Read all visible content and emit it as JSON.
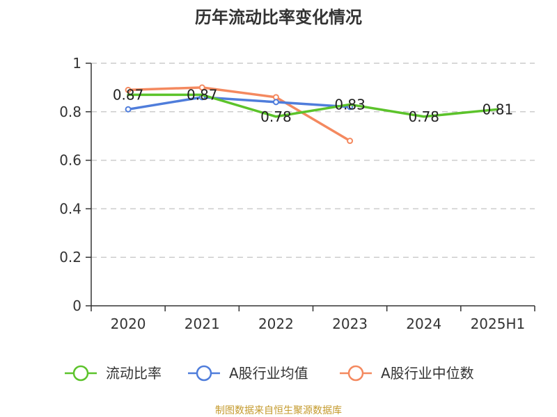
{
  "chart_data": {
    "type": "line",
    "title": "历年流动比率变化情况",
    "categories": [
      "2020",
      "2021",
      "2022",
      "2023",
      "2024",
      "2025H1"
    ],
    "ylim": [
      0,
      1
    ],
    "yticks": [
      "0",
      "0.2",
      "0.4",
      "0.6",
      "0.8",
      "1"
    ],
    "grid": true,
    "legend_position": "bottom",
    "series": [
      {
        "name": "流动比率",
        "color": "#5cc32b",
        "values": [
          0.87,
          0.87,
          0.78,
          0.83,
          0.78,
          0.81
        ],
        "labels": [
          "0.87",
          "0.87",
          "0.78",
          "0.83",
          "0.78",
          "0.81"
        ]
      },
      {
        "name": "A股行业均值",
        "color": "#4f7ddb",
        "values": [
          0.81,
          0.86,
          0.84,
          0.82,
          null,
          null
        ]
      },
      {
        "name": "A股行业中位数",
        "color": "#f4895f",
        "values": [
          0.89,
          0.9,
          0.86,
          0.68,
          null,
          null
        ]
      }
    ]
  },
  "source": "制图数据来自恒生聚源数据库"
}
